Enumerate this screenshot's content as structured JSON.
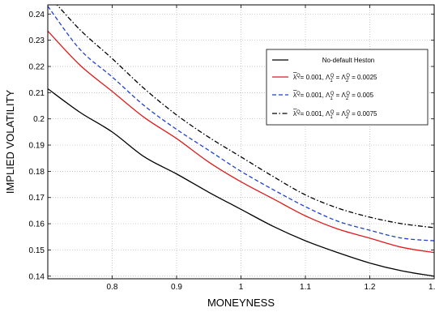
{
  "chart_data": {
    "type": "line",
    "title": "",
    "xlabel": "MONEYNESS",
    "ylabel": "IMPLIED VOLATILITY",
    "xlim": [
      0.7,
      1.3
    ],
    "ylim": [
      0.139,
      0.2435
    ],
    "xticks": [
      0.8,
      0.9,
      1,
      1.1,
      1.2,
      1.3
    ],
    "xtick_labels": [
      "0.8",
      "0.9",
      "1",
      "1.1",
      "1.2",
      "1.3"
    ],
    "yticks": [
      0.14,
      0.15,
      0.16,
      0.17,
      0.18,
      0.19,
      0.2,
      0.21,
      0.22,
      0.23,
      0.24
    ],
    "ytick_labels": [
      "0.14",
      "0.15",
      "0.16",
      "0.17",
      "0.18",
      "0.19",
      "0.2",
      "0.21",
      "0.22",
      "0.23",
      "0.24"
    ],
    "grid": true,
    "legend_position": "top-right",
    "x": [
      0.7,
      0.75,
      0.8,
      0.85,
      0.9,
      0.95,
      1.0,
      1.05,
      1.1,
      1.15,
      1.2,
      1.25,
      1.3
    ],
    "series": [
      {
        "label_parts": [
          "No-default Heston"
        ],
        "color": "#000000",
        "dash": "solid",
        "values": [
          0.2115,
          0.2025,
          0.195,
          0.1855,
          0.179,
          0.172,
          0.1655,
          0.159,
          0.1535,
          0.149,
          0.145,
          0.142,
          0.14
        ]
      },
      {
        "label_parts": [
          "λ",
          "Q",
          "= 0.001, Λ",
          "1",
          "Q",
          " = Λ",
          "2",
          "Q",
          " = 0.0025"
        ],
        "color": "#e01b1b",
        "dash": "solid",
        "values": [
          0.2335,
          0.2205,
          0.2105,
          0.2005,
          0.1925,
          0.1835,
          0.176,
          0.1695,
          0.163,
          0.158,
          0.1545,
          0.151,
          0.149
        ]
      },
      {
        "label_parts": [
          "λ",
          "Q",
          "= 0.001, Λ",
          "1",
          "Q",
          " = Λ",
          "2",
          "Q",
          " = 0.005"
        ],
        "color": "#1f3fd8",
        "dash": "dashed",
        "values": [
          0.243,
          0.2265,
          0.216,
          0.205,
          0.196,
          0.188,
          0.18,
          0.173,
          0.1665,
          0.161,
          0.1575,
          0.1545,
          0.1535
        ]
      },
      {
        "label_parts": [
          "λ",
          "Q",
          "= 0.001, Λ",
          "1",
          "Q",
          " = Λ",
          "2",
          "Q",
          " = 0.0075"
        ],
        "color": "#000000",
        "dash": "dashdot",
        "values": [
          0.2475,
          0.234,
          0.223,
          0.2115,
          0.2015,
          0.193,
          0.1855,
          0.178,
          0.171,
          0.166,
          0.1625,
          0.16,
          0.1585
        ]
      }
    ]
  }
}
